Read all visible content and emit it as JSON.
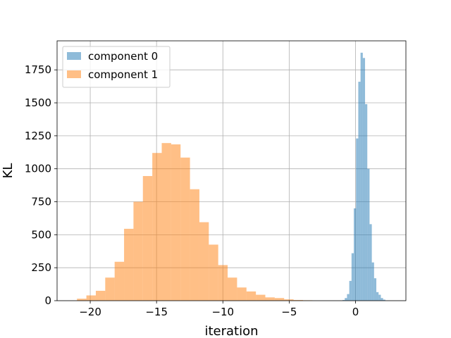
{
  "chart_data": {
    "type": "bar",
    "subtype": "histogram",
    "xlabel": "iteration",
    "ylabel": "KL",
    "xlim": [
      -22.5,
      3.8
    ],
    "ylim": [
      0,
      1970
    ],
    "xticks": [
      -20,
      -15,
      -10,
      -5,
      0
    ],
    "xtick_labels": [
      "−20",
      "−15",
      "−10",
      "−5",
      "0"
    ],
    "yticks": [
      0,
      250,
      500,
      750,
      1000,
      1250,
      1500,
      1750
    ],
    "ytick_labels": [
      "0",
      "250",
      "500",
      "750",
      "1000",
      "1250",
      "1500",
      "1750"
    ],
    "grid": true,
    "legend_position": "upper left",
    "series": [
      {
        "name": "component 0",
        "color": "#1f77b4",
        "alpha": 0.5,
        "bin_width": 0.17,
        "bins": [
          [
            -0.98,
            5
          ],
          [
            -0.81,
            20
          ],
          [
            -0.64,
            50
          ],
          [
            -0.47,
            150
          ],
          [
            -0.3,
            360
          ],
          [
            -0.13,
            700
          ],
          [
            0.04,
            1230
          ],
          [
            0.21,
            1660
          ],
          [
            0.38,
            1880
          ],
          [
            0.55,
            1840
          ],
          [
            0.72,
            1490
          ],
          [
            0.89,
            1000
          ],
          [
            1.06,
            580
          ],
          [
            1.23,
            290
          ],
          [
            1.4,
            170
          ],
          [
            1.57,
            65
          ],
          [
            1.74,
            45
          ],
          [
            1.91,
            20
          ],
          [
            2.08,
            8
          ]
        ]
      },
      {
        "name": "component 1",
        "color": "#ff7f0e",
        "alpha": 0.5,
        "bin_width": 0.71,
        "bins": [
          [
            -21.0,
            15
          ],
          [
            -20.29,
            40
          ],
          [
            -19.58,
            75
          ],
          [
            -18.87,
            175
          ],
          [
            -18.16,
            295
          ],
          [
            -17.45,
            545
          ],
          [
            -16.74,
            750
          ],
          [
            -16.03,
            945
          ],
          [
            -15.32,
            1120
          ],
          [
            -14.61,
            1195
          ],
          [
            -13.9,
            1185
          ],
          [
            -13.19,
            1085
          ],
          [
            -12.48,
            845
          ],
          [
            -11.77,
            595
          ],
          [
            -11.06,
            425
          ],
          [
            -10.35,
            270
          ],
          [
            -9.64,
            175
          ],
          [
            -8.93,
            100
          ],
          [
            -8.22,
            70
          ],
          [
            -7.51,
            45
          ],
          [
            -6.8,
            25
          ],
          [
            -6.09,
            20
          ],
          [
            -5.38,
            10
          ],
          [
            -4.67,
            5
          ],
          [
            -3.96,
            3
          ]
        ]
      }
    ]
  }
}
